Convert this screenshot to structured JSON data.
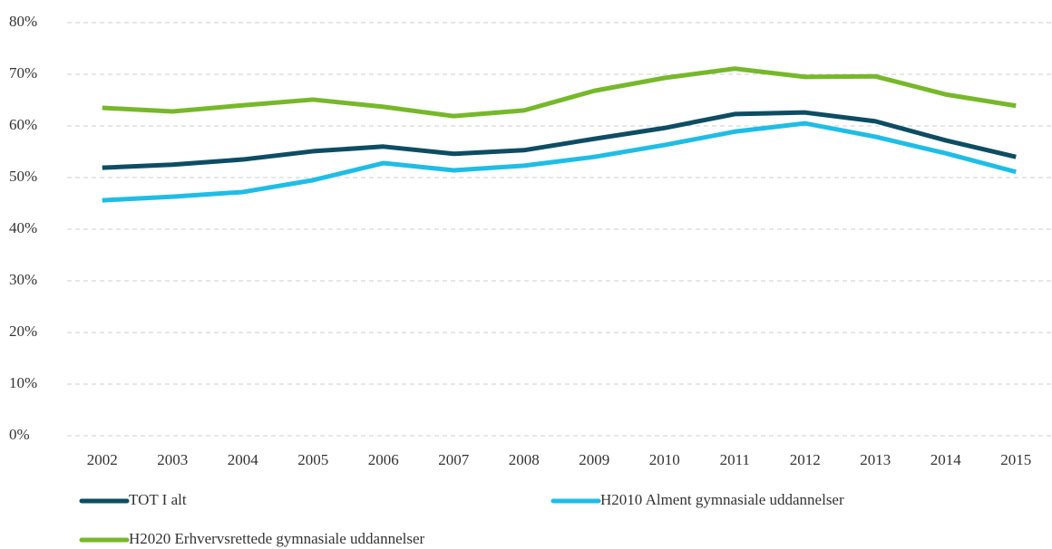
{
  "chart_data": {
    "type": "line",
    "categories": [
      "2002",
      "2003",
      "2004",
      "2005",
      "2006",
      "2007",
      "2008",
      "2009",
      "2010",
      "2011",
      "2012",
      "2013",
      "2014",
      "2015"
    ],
    "series": [
      {
        "name": "TOT I alt",
        "color": "#0d4d63",
        "values": [
          51.9,
          52.5,
          53.5,
          55.1,
          56.0,
          54.6,
          55.3,
          57.5,
          59.6,
          62.3,
          62.6,
          60.9,
          57.2,
          54.0
        ]
      },
      {
        "name": "H2010 Alment gymnasiale uddannelser",
        "color": "#1fbde6",
        "values": [
          45.6,
          46.3,
          47.2,
          49.5,
          52.8,
          51.4,
          52.3,
          54.0,
          56.3,
          58.9,
          60.5,
          57.9,
          54.7,
          51.1
        ]
      },
      {
        "name": "H2020 Erhvervsrettede gymnasiale uddannelser",
        "color": "#76b82a",
        "values": [
          63.5,
          62.8,
          64.0,
          65.1,
          63.7,
          61.9,
          63.0,
          66.8,
          69.3,
          71.1,
          69.5,
          69.6,
          66.1,
          63.9
        ]
      }
    ],
    "ylim": [
      0,
      80
    ],
    "yticks": [
      {
        "value": 0,
        "label": "0%"
      },
      {
        "value": 10,
        "label": "10%"
      },
      {
        "value": 20,
        "label": "20%"
      },
      {
        "value": 30,
        "label": "30%"
      },
      {
        "value": 40,
        "label": "40%"
      },
      {
        "value": 50,
        "label": "50%"
      },
      {
        "value": 60,
        "label": "60%"
      },
      {
        "value": 70,
        "label": "70%"
      },
      {
        "value": 80,
        "label": "80%"
      }
    ],
    "grid": true,
    "legend": "bottom"
  }
}
